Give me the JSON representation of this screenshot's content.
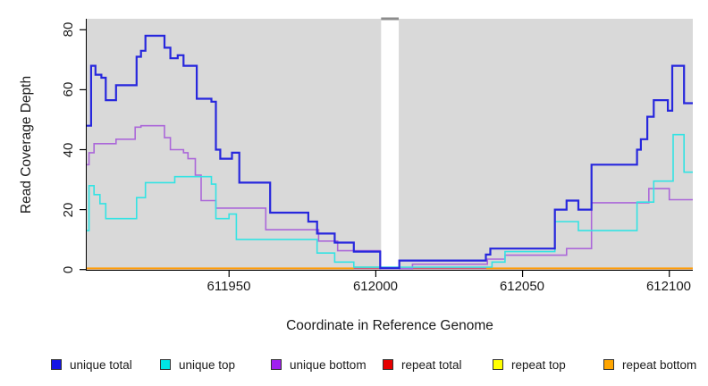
{
  "figure": {
    "x_axis_label": "Coordinate in Reference Genome",
    "y_axis_label": "Read Coverage Depth",
    "x_tick_labels": [
      "611950",
      "612000",
      "612050",
      "612100"
    ],
    "y_tick_labels": [
      "0",
      "20",
      "40",
      "60",
      "80"
    ]
  },
  "legend": {
    "items": [
      {
        "label": "unique total",
        "color": "#1414e6"
      },
      {
        "label": "unique top",
        "color": "#00e5e5"
      },
      {
        "label": "unique bottom",
        "color": "#a020f0"
      },
      {
        "label": "repeat total",
        "color": "#e60000"
      },
      {
        "label": "repeat top",
        "color": "#ffff00"
      },
      {
        "label": "repeat bottom",
        "color": "#ffa500"
      }
    ]
  },
  "chart_data": {
    "type": "line",
    "subtype": "step-coverage",
    "title": "",
    "xlabel": "Coordinate in Reference Genome",
    "ylabel": "Read Coverage Depth",
    "xlim": [
      611901.5,
      612108
    ],
    "ylim": [
      0,
      84
    ],
    "x_ticks": [
      611950,
      612000,
      612050,
      612100
    ],
    "y_ticks": [
      0,
      20,
      40,
      60,
      80
    ],
    "plot_bg": "#d9d9d9",
    "grid": false,
    "legend_position": "bottom",
    "gap": {
      "x_start": 612001.8,
      "x_end": 612007.8,
      "fill": "#ffffff",
      "cap_color": "#8c8c8c"
    },
    "series": [
      {
        "name": "repeat total",
        "line_color": "#cf5d7a",
        "width": 1.6,
        "paths": [
          [
            [
              611901.5,
              0.4
            ],
            [
              612108,
              0.4
            ]
          ]
        ]
      },
      {
        "name": "repeat top",
        "line_color": "#74bd8e",
        "width": 1.6,
        "paths": [
          [
            [
              611992.5,
              0.8
            ],
            [
              612001.8,
              0.8
            ]
          ]
        ]
      },
      {
        "name": "repeat bottom",
        "line_color": "#ff9d0a",
        "width": 2,
        "paths": [
          [
            [
              611901.5,
              0.4
            ],
            [
              611992.5,
              0.4
            ]
          ],
          [
            [
              612037.6,
              0.4
            ],
            [
              612108,
              0.4
            ]
          ]
        ]
      },
      {
        "name": "unique bottom",
        "line_color": "#ab67d9",
        "width": 1.6,
        "paths": [
          [
            [
              611901.5,
              35
            ],
            [
              611902.3,
              39
            ],
            [
              611904,
              42
            ],
            [
              611911.5,
              43.5
            ],
            [
              611918,
              47.5
            ],
            [
              611920,
              48
            ],
            [
              611928,
              44
            ],
            [
              611930,
              40
            ],
            [
              611934.5,
              39
            ],
            [
              611936,
              37
            ],
            [
              611938.5,
              31.5
            ],
            [
              611940.5,
              23
            ],
            [
              611945.5,
              20.5
            ],
            [
              611962.5,
              13.3
            ],
            [
              611980.5,
              9.5
            ],
            [
              611987,
              6.3
            ],
            [
              612001.5,
              0.3
            ],
            [
              612012.5,
              1.8
            ],
            [
              612038,
              3.5
            ],
            [
              612044,
              4.8
            ],
            [
              612065,
              7
            ],
            [
              612073.5,
              22.3
            ],
            [
              612093,
              27
            ],
            [
              612100,
              23.3
            ],
            [
              612108,
              23.3
            ]
          ]
        ]
      },
      {
        "name": "unique top",
        "line_color": "#33e3e3",
        "width": 1.6,
        "paths": [
          [
            [
              611901.5,
              13
            ],
            [
              611902.3,
              28
            ],
            [
              611904,
              25
            ],
            [
              611906,
              22
            ],
            [
              611908,
              17
            ],
            [
              611918.5,
              24
            ],
            [
              611921.5,
              29
            ],
            [
              611931.5,
              31
            ],
            [
              611944,
              28.5
            ],
            [
              611945.5,
              17
            ],
            [
              611950,
              18.5
            ],
            [
              611952.5,
              10
            ],
            [
              611980,
              5.5
            ],
            [
              611986,
              2.5
            ],
            [
              611992.5,
              0.8
            ],
            [
              612039.6,
              2.5
            ],
            [
              612044,
              6
            ],
            [
              612061,
              16
            ],
            [
              612069,
              13
            ],
            [
              612089,
              22.5
            ],
            [
              612094.7,
              29.5
            ],
            [
              612101.3,
              45
            ],
            [
              612105,
              32.5
            ],
            [
              612108,
              32.5
            ]
          ]
        ]
      },
      {
        "name": "unique total",
        "line_color": "#2727dd",
        "width": 2.2,
        "paths": [
          [
            [
              611901.5,
              48
            ],
            [
              611903,
              68
            ],
            [
              611904.5,
              65
            ],
            [
              611906.5,
              64
            ],
            [
              611908,
              56.5
            ],
            [
              611911.5,
              61.5
            ],
            [
              611918.5,
              71
            ],
            [
              611920,
              73
            ],
            [
              611921.5,
              78
            ],
            [
              611928,
              74
            ],
            [
              611930,
              70.5
            ],
            [
              611932.5,
              71.5
            ],
            [
              611934.5,
              68
            ],
            [
              611939,
              57
            ],
            [
              611944,
              56
            ],
            [
              611945.5,
              40
            ],
            [
              611947,
              37
            ],
            [
              611951,
              39
            ],
            [
              611953.5,
              29
            ],
            [
              611964,
              19
            ],
            [
              611977,
              16
            ],
            [
              611980,
              12
            ],
            [
              611986,
              9
            ],
            [
              611992.5,
              6
            ],
            [
              612001.5,
              0.5
            ],
            [
              612008,
              3
            ],
            [
              612037.5,
              5
            ],
            [
              612039,
              7
            ],
            [
              612061,
              20
            ],
            [
              612065,
              23
            ],
            [
              612069,
              20
            ],
            [
              612073.5,
              35
            ],
            [
              612089,
              40
            ],
            [
              612090.3,
              43.5
            ],
            [
              612092.5,
              51
            ],
            [
              612094.7,
              56.5
            ],
            [
              612099.5,
              53
            ],
            [
              612101,
              68
            ],
            [
              612105,
              55.5
            ],
            [
              612108,
              55.5
            ]
          ]
        ]
      }
    ]
  }
}
